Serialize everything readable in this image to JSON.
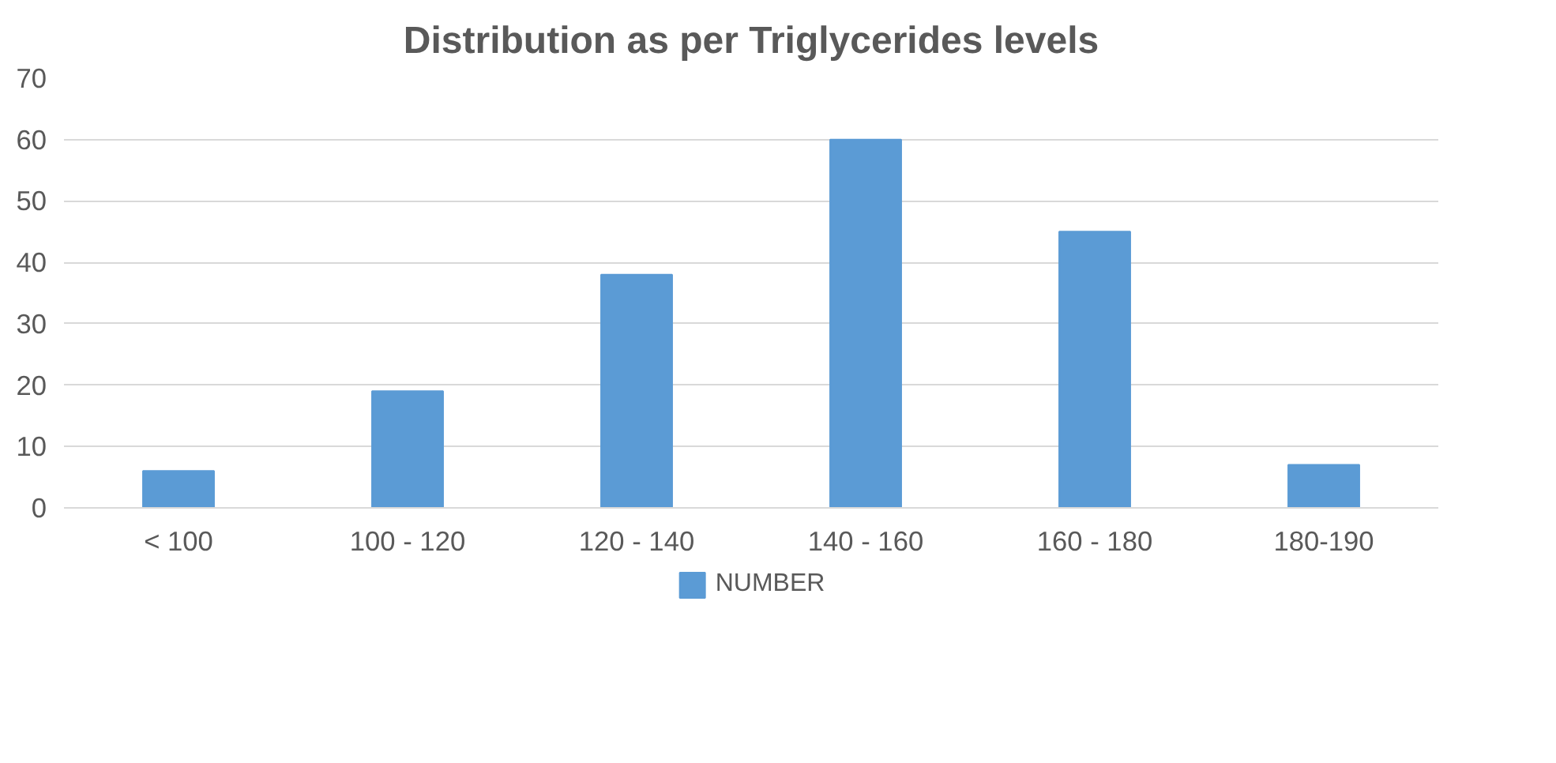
{
  "chart_data": {
    "type": "bar",
    "title": "Distribution as per Triglycerides levels",
    "categories": [
      "< 100",
      "100 - 120",
      "120 - 140",
      "140 - 160",
      "160 - 180",
      "180-190"
    ],
    "series": [
      {
        "name": "NUMBER",
        "color": "#5b9bd5",
        "values": [
          6,
          19,
          38,
          60,
          45,
          7
        ]
      }
    ],
    "ylim": [
      0,
      70
    ],
    "yticks": [
      0,
      10,
      20,
      30,
      40,
      50,
      60,
      70
    ],
    "grid": "y",
    "legend": "bottom"
  }
}
